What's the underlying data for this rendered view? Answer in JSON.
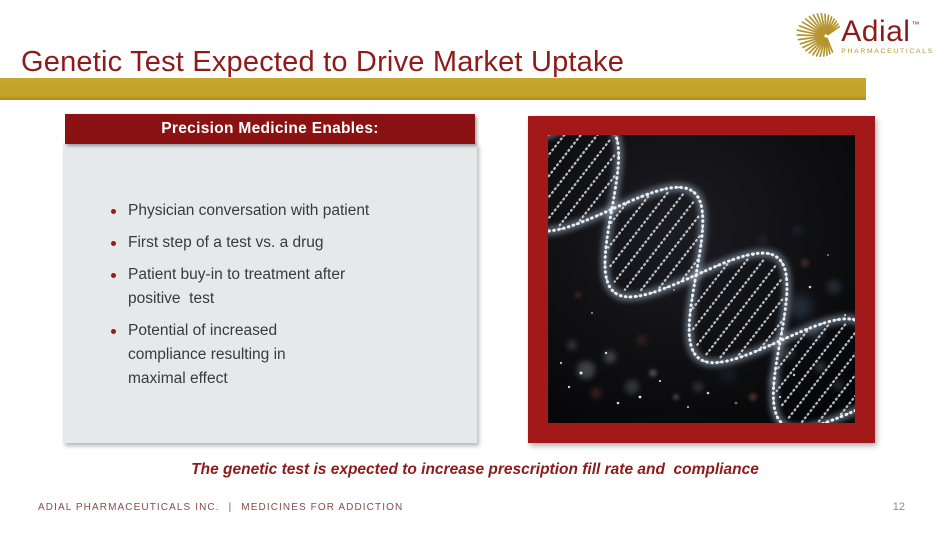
{
  "slide": {
    "title": "Genetic Test Expected to Drive Market Uptake",
    "page_number": "12"
  },
  "logo": {
    "brand": "Adial",
    "trademark": "™",
    "subtitle": "PHARMACEUTICALS"
  },
  "panel": {
    "header": "Precision Medicine Enables:",
    "bullets": [
      "Physician conversation with patient",
      "First step of a test vs. a drug",
      "Patient buy-in to treatment after\npositive  test",
      "Potential of increased\ncompliance resulting in\nmaximal effect"
    ]
  },
  "image": {
    "description": "Glowing DNA double helix on dark background with bokeh lights"
  },
  "tagline": "The genetic test is expected to increase prescription fill rate and  compliance",
  "footer": {
    "company": "ADIAL PHARMACEUTICALS INC.",
    "separator": "|",
    "tagline": "MEDICINES FOR ADDICTION"
  },
  "colors": {
    "title_red": "#8E1A1A",
    "header_red": "#8B1212",
    "frame_red": "#A31919",
    "gold": "#C2A32B",
    "panel_gray": "#E6E9EB",
    "body_text": "#3A3A3C",
    "footer_red": "#8A4A4A",
    "page_gray": "#8C8C8C"
  }
}
